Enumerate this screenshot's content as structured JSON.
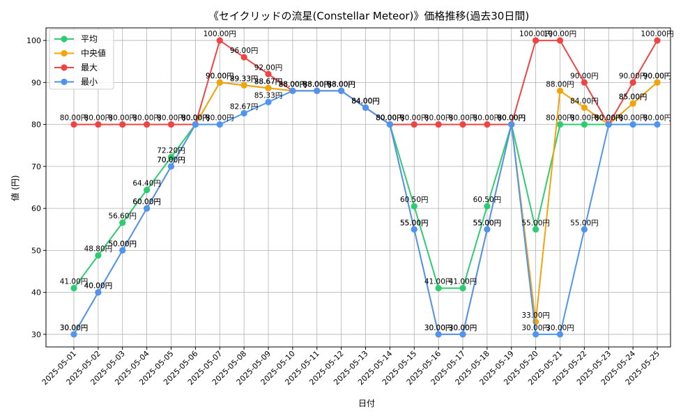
{
  "chart_data": {
    "type": "line",
    "title": "《セイクリッドの流星(Constellar Meteor)》価格推移(過去30日間)",
    "xlabel": "日付",
    "ylabel": "値 (円)",
    "ylim": [
      27,
      103
    ],
    "yticks": [
      30,
      40,
      50,
      60,
      70,
      80,
      90,
      100
    ],
    "grid": true,
    "legend_position": "top-left",
    "label_suffix": "円",
    "categories": [
      "2025-05-01",
      "2025-05-02",
      "2025-05-03",
      "2025-05-04",
      "2025-05-05",
      "2025-05-06",
      "2025-05-07",
      "2025-05-08",
      "2025-05-09",
      "2025-05-10",
      "2025-05-11",
      "2025-05-12",
      "2025-05-13",
      "2025-05-14",
      "2025-05-15",
      "2025-05-16",
      "2025-05-17",
      "2025-05-18",
      "2025-05-19",
      "2025-05-20",
      "2025-05-21",
      "2025-05-22",
      "2025-05-23",
      "2025-05-24",
      "2025-05-25"
    ],
    "series": [
      {
        "name": "平均",
        "color": "#2ecc71",
        "values": [
          41,
          48.8,
          56.6,
          64.4,
          72.2,
          80,
          90,
          89.33,
          88.67,
          88,
          88,
          88,
          84,
          80,
          60.5,
          41,
          41,
          60.5,
          80,
          55,
          80,
          80,
          80,
          85,
          90
        ]
      },
      {
        "name": "中央値",
        "color": "#f5a30a",
        "values": [
          30,
          40,
          50,
          60,
          70,
          80,
          90,
          89.33,
          88.67,
          88,
          88,
          88,
          84,
          80,
          55,
          30,
          30,
          55,
          80,
          33,
          88,
          84,
          80,
          85,
          90
        ]
      },
      {
        "name": "最大",
        "color": "#ef4444",
        "values": [
          80,
          80,
          80,
          80,
          80,
          80,
          100,
          96,
          92,
          88,
          88,
          88,
          84,
          80,
          80,
          80,
          80,
          80,
          80,
          100,
          100,
          90,
          80,
          90,
          100
        ]
      },
      {
        "name": "最小",
        "color": "#4f95f0",
        "values": [
          30,
          40,
          50,
          60,
          70,
          80,
          80,
          82.67,
          85.33,
          88,
          88,
          88,
          84,
          80,
          55,
          30,
          30,
          55,
          80,
          30,
          30,
          55,
          80,
          80,
          80
        ]
      }
    ]
  }
}
